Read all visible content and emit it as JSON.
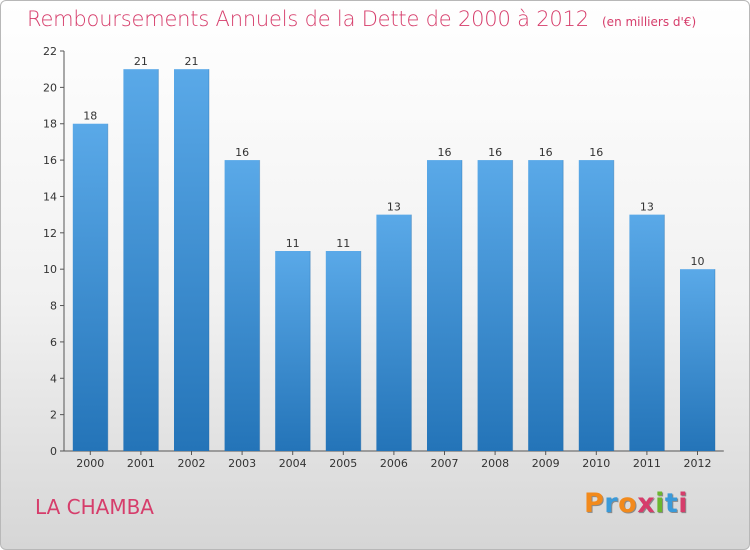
{
  "title": "Remboursements Annuels de la Dette de 2000 à 2012",
  "subtitle": "(en milliers d'€)",
  "commune": "LA CHAMBA",
  "brand": "Proxiti",
  "colors": {
    "title": "#d63d6b",
    "bar_top": "#5aa9e8",
    "bar_bottom": "#2474b8",
    "brand_letters": [
      "#f28a1c",
      "#3a9ad9",
      "#f28a1c",
      "#d63d6b",
      "#6bb62f",
      "#3a9ad9",
      "#d63d6b"
    ]
  },
  "chart_data": {
    "type": "bar",
    "categories": [
      "2000",
      "2001",
      "2002",
      "2003",
      "2004",
      "2005",
      "2006",
      "2007",
      "2008",
      "2009",
      "2010",
      "2011",
      "2012"
    ],
    "values": [
      18,
      21,
      21,
      16,
      11,
      11,
      13,
      16,
      16,
      16,
      16,
      13,
      10
    ],
    "title": "Remboursements Annuels de la Dette de 2000 à 2012",
    "ylim": [
      0,
      22
    ],
    "yticks": [
      0,
      2,
      4,
      6,
      8,
      10,
      12,
      14,
      16,
      18,
      20,
      22
    ],
    "grid": false,
    "legend": "none"
  }
}
